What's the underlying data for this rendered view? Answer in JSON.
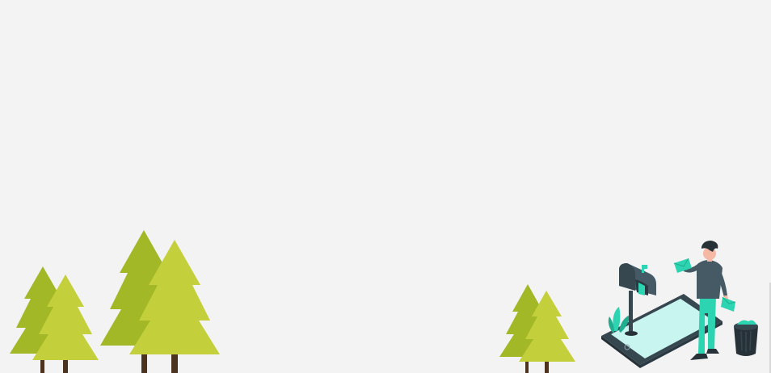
{
  "page": {
    "background_color": "#f3f3f3"
  },
  "scene": {
    "tree_colors": {
      "dark": "#a3b826",
      "light": "#c4cf3c",
      "trunk": "#4a3320"
    },
    "illustration": {
      "icons": [
        "person-icon",
        "mailbox-icon",
        "smartphone-icon",
        "trash-bin-icon",
        "envelope-icon",
        "plant-icon"
      ],
      "colors": {
        "accent": "#2dd4b1",
        "dark": "#37474f",
        "screen": "#c8f5ef"
      }
    }
  }
}
